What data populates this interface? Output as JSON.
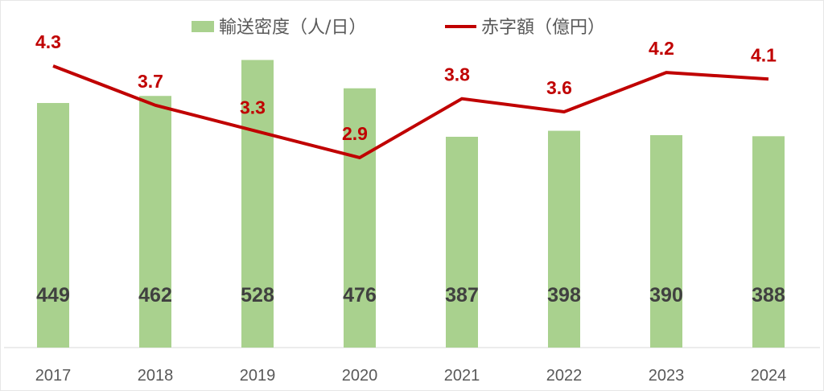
{
  "chart_data": {
    "type": "bar+line",
    "categories": [
      "2017",
      "2018",
      "2019",
      "2020",
      "2021",
      "2022",
      "2023",
      "2024"
    ],
    "series": [
      {
        "name": "輸送密度（人/日）",
        "type": "bar",
        "axis": "primary",
        "color": "#a9d18e",
        "values": [
          449,
          462,
          528,
          476,
          387,
          398,
          390,
          388
        ]
      },
      {
        "name": "赤字額（億円）",
        "type": "line",
        "axis": "secondary",
        "color": "#c00000",
        "values": [
          4.3,
          3.7,
          3.3,
          2.9,
          3.8,
          3.6,
          4.2,
          4.1
        ]
      }
    ],
    "data_labels": true,
    "legend_position": "top",
    "grid": false,
    "y_axis_visible": false
  }
}
